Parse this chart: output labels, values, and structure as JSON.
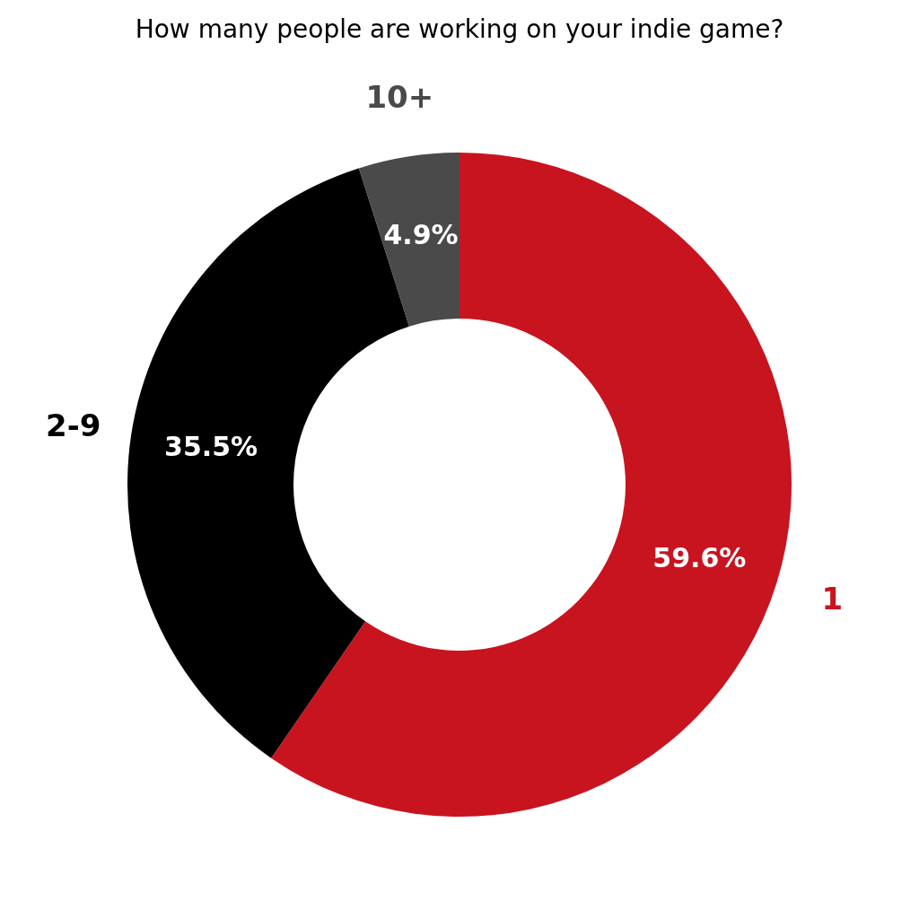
{
  "chart_data": {
    "type": "donut",
    "title": "How many people are working on your indie game?",
    "categories": [
      "1",
      "2-9",
      "10+"
    ],
    "values": [
      59.6,
      35.5,
      4.9
    ],
    "value_labels": [
      "59.6%",
      "35.5%",
      "4.9%"
    ],
    "colors": [
      "#c8141f",
      "#000000",
      "#4a4a4a"
    ]
  }
}
